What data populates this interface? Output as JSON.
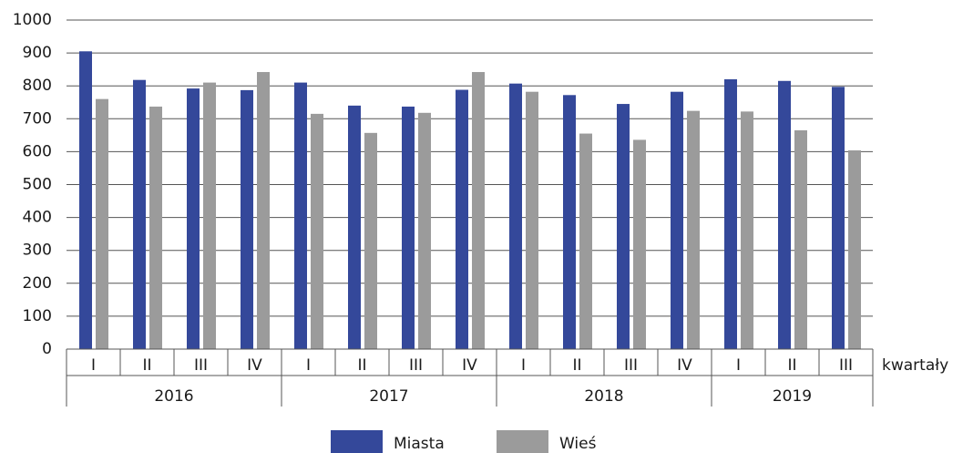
{
  "chart_data": {
    "type": "bar",
    "x_label": "kwartały",
    "category_groups": [
      {
        "label": "2016",
        "categories": [
          "I",
          "II",
          "III",
          "IV"
        ]
      },
      {
        "label": "2017",
        "categories": [
          "I",
          "II",
          "III",
          "IV"
        ]
      },
      {
        "label": "2018",
        "categories": [
          "I",
          "II",
          "III",
          "IV"
        ]
      },
      {
        "label": "2019",
        "categories": [
          "I",
          "II",
          "III"
        ]
      }
    ],
    "series": [
      {
        "name": "Miasta",
        "color": "#34489a",
        "values": [
          905,
          818,
          792,
          787,
          810,
          740,
          737,
          788,
          807,
          772,
          745,
          782,
          820,
          815,
          797
        ]
      },
      {
        "name": "Wieś",
        "color": "#9b9b9b",
        "values": [
          760,
          737,
          810,
          842,
          715,
          657,
          718,
          842,
          782,
          655,
          636,
          724,
          722,
          665,
          604
        ]
      }
    ],
    "ylim": [
      0,
      1000
    ],
    "yticks": [
      0,
      100,
      200,
      300,
      400,
      500,
      600,
      700,
      800,
      900,
      1000
    ],
    "grid": true,
    "legend": "bottom"
  }
}
